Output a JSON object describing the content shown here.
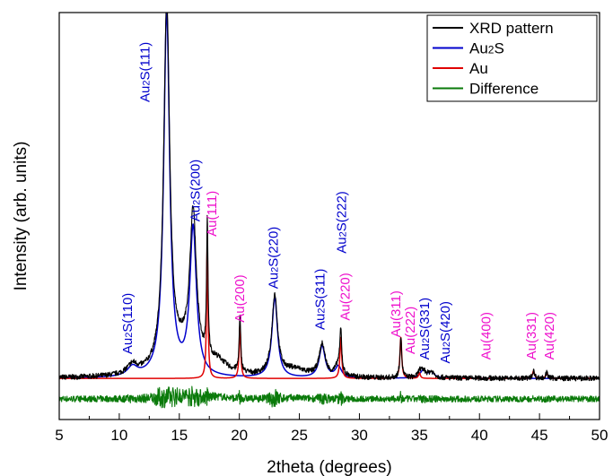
{
  "chart_data": {
    "type": "line",
    "xlabel": "2theta (degrees)",
    "ylabel": "Intensity (arb. units)",
    "xlim": [
      5,
      50
    ],
    "ylim": [
      -0.09,
      1.0
    ],
    "xticks": [
      "5",
      "10",
      "15",
      "20",
      "25",
      "30",
      "35",
      "40",
      "45",
      "50"
    ],
    "yticks_shown": false,
    "grid": false,
    "legend_position": "top-right",
    "colors": {
      "xrd": "#000000",
      "au2s": "#0000cc",
      "au": "#e00000",
      "difference": "#0a7a0a",
      "au2s_label": "#0000cc",
      "au_label": "#ee11cc"
    },
    "legend": [
      {
        "key": "xrd",
        "parts": [
          {
            "t": "XRD pattern"
          }
        ]
      },
      {
        "key": "au2s",
        "parts": [
          {
            "t": "Au"
          },
          {
            "t": "2",
            "sub": true
          },
          {
            "t": "S"
          }
        ]
      },
      {
        "key": "au",
        "parts": [
          {
            "t": "Au"
          }
        ]
      },
      {
        "key": "difference",
        "parts": [
          {
            "t": "Difference"
          }
        ]
      }
    ],
    "baseline": 0.02,
    "diff_baseline": -0.035,
    "peaks": {
      "au2s": [
        {
          "x": 11.1,
          "h": 0.025,
          "w": 0.5
        },
        {
          "x": 13.95,
          "h": 0.975,
          "w": 0.3
        },
        {
          "x": 16.15,
          "h": 0.395,
          "w": 0.33
        },
        {
          "x": 22.95,
          "h": 0.215,
          "w": 0.28
        },
        {
          "x": 26.9,
          "h": 0.085,
          "w": 0.3
        },
        {
          "x": 28.25,
          "h": 0.03,
          "w": 0.3
        },
        {
          "x": 35.3,
          "h": 0.02,
          "w": 0.3
        },
        {
          "x": 36.0,
          "h": 0.015,
          "w": 0.3
        }
      ],
      "au": [
        {
          "x": 17.33,
          "h": 0.365,
          "w": 0.07
        },
        {
          "x": 20.05,
          "h": 0.145,
          "w": 0.08
        },
        {
          "x": 28.45,
          "h": 0.11,
          "w": 0.09
        },
        {
          "x": 33.45,
          "h": 0.11,
          "w": 0.09
        },
        {
          "x": 35.0,
          "h": 0.015,
          "w": 0.09
        },
        {
          "x": 44.5,
          "h": 0.02,
          "w": 0.1
        },
        {
          "x": 45.6,
          "h": 0.015,
          "w": 0.1
        }
      ],
      "xrd_extra": [
        {
          "x": 15.3,
          "h": 0.055,
          "w": 1.6
        },
        {
          "x": 18.2,
          "h": 0.03,
          "w": 0.9
        },
        {
          "x": 24.6,
          "h": 0.02,
          "w": 1.2
        }
      ]
    },
    "peak_labels": [
      {
        "parts": [
          {
            "t": "Au"
          },
          {
            "t": "2",
            "sub": true
          },
          {
            "t": "S(110)"
          }
        ],
        "x": 11.05,
        "y": 0.085,
        "color": "au2s_label"
      },
      {
        "parts": [
          {
            "t": "Au"
          },
          {
            "t": "2",
            "sub": true
          },
          {
            "t": "S(111)"
          }
        ],
        "x": 12.5,
        "y": 0.76,
        "color": "au2s_label"
      },
      {
        "parts": [
          {
            "t": "Au"
          },
          {
            "t": "2",
            "sub": true
          },
          {
            "t": "S(200)"
          }
        ],
        "x": 16.7,
        "y": 0.44,
        "color": "au2s_label"
      },
      {
        "parts": [
          {
            "t": "Au(111)"
          }
        ],
        "x": 18.1,
        "y": 0.4,
        "color": "au_label"
      },
      {
        "parts": [
          {
            "t": "Au(200)"
          }
        ],
        "x": 20.4,
        "y": 0.17,
        "color": "au_label"
      },
      {
        "parts": [
          {
            "t": "Au"
          },
          {
            "t": "2",
            "sub": true
          },
          {
            "t": "S(220)"
          }
        ],
        "x": 23.2,
        "y": 0.26,
        "color": "au2s_label"
      },
      {
        "parts": [
          {
            "t": "Au"
          },
          {
            "t": "2",
            "sub": true
          },
          {
            "t": "S(311)"
          }
        ],
        "x": 27.1,
        "y": 0.15,
        "color": "au2s_label"
      },
      {
        "parts": [
          {
            "t": "Au"
          },
          {
            "t": "2",
            "sub": true
          },
          {
            "t": "S(222)"
          }
        ],
        "x": 28.9,
        "y": 0.355,
        "color": "au2s_label"
      },
      {
        "parts": [
          {
            "t": "Au(220)"
          }
        ],
        "x": 29.2,
        "y": 0.175,
        "color": "au_label"
      },
      {
        "parts": [
          {
            "t": "Au(311)"
          }
        ],
        "x": 33.4,
        "y": 0.13,
        "color": "au_label"
      },
      {
        "parts": [
          {
            "t": "Au(222)"
          }
        ],
        "x": 34.6,
        "y": 0.085,
        "color": "au_label"
      },
      {
        "parts": [
          {
            "t": "Au"
          },
          {
            "t": "2",
            "sub": true
          },
          {
            "t": "S(331)"
          }
        ],
        "x": 35.8,
        "y": 0.07,
        "color": "au2s_label"
      },
      {
        "parts": [
          {
            "t": "Au"
          },
          {
            "t": "2",
            "sub": true
          },
          {
            "t": "S(420)"
          }
        ],
        "x": 37.5,
        "y": 0.06,
        "color": "au2s_label"
      },
      {
        "parts": [
          {
            "t": "Au(400)"
          }
        ],
        "x": 40.9,
        "y": 0.07,
        "color": "au_label"
      },
      {
        "parts": [
          {
            "t": "Au(331)"
          }
        ],
        "x": 44.7,
        "y": 0.07,
        "color": "au_label"
      },
      {
        "parts": [
          {
            "t": "Au(420)"
          }
        ],
        "x": 46.2,
        "y": 0.07,
        "color": "au_label"
      }
    ]
  }
}
